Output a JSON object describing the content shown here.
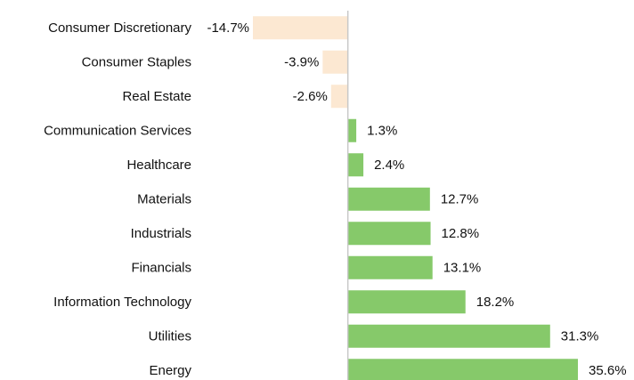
{
  "chart_data": {
    "type": "hbar",
    "categories": [
      "Consumer Discretionary",
      "Consumer Staples",
      "Real Estate",
      "Communication Services",
      "Healthcare",
      "Materials",
      "Industrials",
      "Financials",
      "Information Technology",
      "Utilities",
      "Energy"
    ],
    "values": [
      -14.7,
      -3.9,
      -2.6,
      1.3,
      2.4,
      12.7,
      12.8,
      13.1,
      18.2,
      31.3,
      35.6
    ],
    "value_labels": [
      "-14.7%",
      "-3.9%",
      "-2.6%",
      "1.3%",
      "2.4%",
      "12.7%",
      "12.8%",
      "13.1%",
      "18.2%",
      "31.3%",
      "35.6%"
    ],
    "color": "#86c96a",
    "negative_color": "#fce8d2"
  }
}
